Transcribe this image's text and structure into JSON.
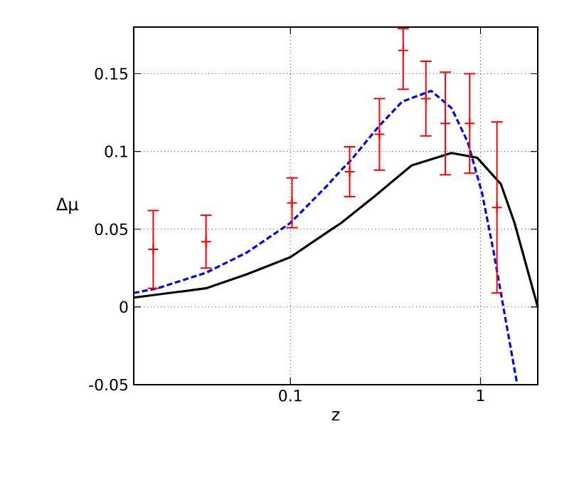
{
  "chart_data": {
    "type": "line",
    "xlabel": "z",
    "ylabel": "Δμ",
    "log": "x",
    "grid": true,
    "xlim": [
      0.015,
      2
    ],
    "ylim": [
      -0.05,
      0.18
    ],
    "xticks": [
      0.1,
      1
    ],
    "yticks": [
      -0.05,
      0,
      0.05,
      0.1,
      0.15
    ],
    "series": [
      {
        "type": "line",
        "color": "#000000",
        "line_style": "solid",
        "x": [
          0.015,
          0.036,
          0.059,
          0.1,
          0.156,
          0.185,
          0.276,
          0.434,
          0.703,
          0.96,
          1.28,
          1.51,
          2
        ],
        "values": [
          0.006,
          0.012,
          0.021,
          0.032,
          0.048,
          0.054,
          0.071,
          0.091,
          0.099,
          0.096,
          0.079,
          0.054,
          0
        ]
      },
      {
        "type": "line",
        "color": "#0000ff",
        "line_style": "dashed",
        "x": [
          0.015,
          0.02,
          0.036,
          0.059,
          0.1,
          0.156,
          0.185,
          0.207,
          0.291,
          0.387,
          0.55,
          0.703,
          0.857,
          1.02,
          1.17,
          1.35,
          1.56
        ],
        "values": [
          0.009,
          0.012,
          0.022,
          0.035,
          0.054,
          0.078,
          0.088,
          0.094,
          0.116,
          0.132,
          0.139,
          0.128,
          0.106,
          0.073,
          0.036,
          -0.007,
          -0.05
        ]
      },
      {
        "type": "scatter",
        "color": "#ff0000",
        "marker": "cross",
        "x": [
          0.019,
          0.036,
          0.102,
          0.205,
          0.294,
          0.392,
          0.516,
          0.653,
          0.877,
          1.22
        ],
        "values": [
          0.037,
          0.042,
          0.067,
          0.087,
          0.111,
          0.165,
          0.134,
          0.118,
          0.118,
          0.064
        ],
        "errors": [
          0.025,
          0.017,
          0.016,
          0.016,
          0.023,
          [
            0.14,
            0.179
          ],
          0.024,
          0.033,
          0.032,
          0.055
        ]
      }
    ]
  }
}
